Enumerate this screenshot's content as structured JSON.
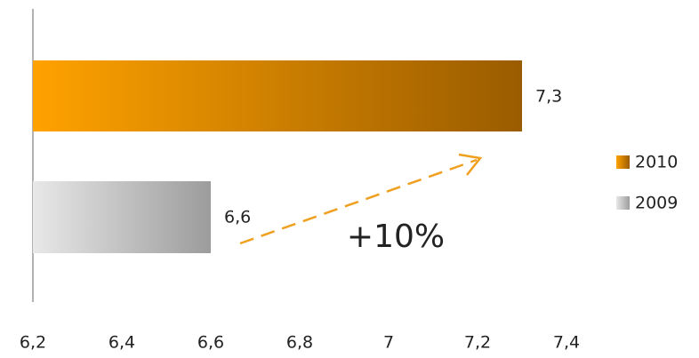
{
  "chart_data": {
    "type": "hbar",
    "categories": [
      "2010",
      "2009"
    ],
    "values": [
      7.3,
      6.6
    ],
    "value_labels": [
      "7,3",
      "6,6"
    ],
    "gradients": [
      [
        "#ffa200",
        "#9a5c00"
      ],
      [
        "#e8e8e8",
        "#9c9c9c"
      ]
    ],
    "xlim": [
      6.2,
      7.4
    ],
    "xticks": [
      {
        "value": 6.2,
        "label": "6,2"
      },
      {
        "value": 6.4,
        "label": "6,4"
      },
      {
        "value": 6.6,
        "label": "6,6"
      },
      {
        "value": 6.8,
        "label": "6,8"
      },
      7,
      {
        "value": 7.2,
        "label": "7,2"
      },
      {
        "value": 7.4,
        "label": "7,4"
      }
    ],
    "annotation": "+10%",
    "arrow_color": "#f0a020",
    "legend": "right"
  }
}
